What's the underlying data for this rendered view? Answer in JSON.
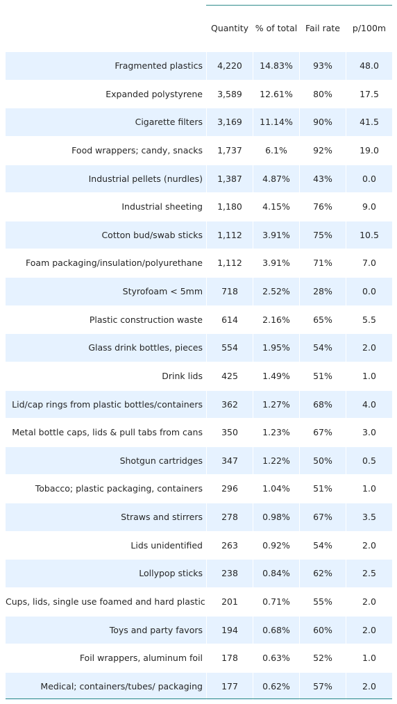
{
  "chart_data": {
    "type": "table",
    "columns": [
      "Quantity",
      "% of total",
      "Fail rate",
      "p/100m"
    ],
    "rows": [
      {
        "label": "Fragmented plastics",
        "values": [
          "4,220",
          "14.83%",
          "93%",
          "48.0"
        ]
      },
      {
        "label": "Expanded polystyrene",
        "values": [
          "3,589",
          "12.61%",
          "80%",
          "17.5"
        ]
      },
      {
        "label": "Cigarette filters",
        "values": [
          "3,169",
          "11.14%",
          "90%",
          "41.5"
        ]
      },
      {
        "label": "Food wrappers; candy, snacks",
        "values": [
          "1,737",
          "6.1%",
          "92%",
          "19.0"
        ]
      },
      {
        "label": "Industrial pellets (nurdles)",
        "values": [
          "1,387",
          "4.87%",
          "43%",
          "0.0"
        ]
      },
      {
        "label": "Industrial sheeting",
        "values": [
          "1,180",
          "4.15%",
          "76%",
          "9.0"
        ]
      },
      {
        "label": "Cotton bud/swab sticks",
        "values": [
          "1,112",
          "3.91%",
          "75%",
          "10.5"
        ]
      },
      {
        "label": "Foam packaging/insulation/polyurethane",
        "values": [
          "1,112",
          "3.91%",
          "71%",
          "7.0"
        ]
      },
      {
        "label": "Styrofoam < 5mm",
        "values": [
          "718",
          "2.52%",
          "28%",
          "0.0"
        ]
      },
      {
        "label": "Plastic construction waste",
        "values": [
          "614",
          "2.16%",
          "65%",
          "5.5"
        ]
      },
      {
        "label": "Glass drink bottles, pieces",
        "values": [
          "554",
          "1.95%",
          "54%",
          "2.0"
        ]
      },
      {
        "label": "Drink lids",
        "values": [
          "425",
          "1.49%",
          "51%",
          "1.0"
        ]
      },
      {
        "label": "Lid/cap rings from plastic bottles/containers",
        "values": [
          "362",
          "1.27%",
          "68%",
          "4.0"
        ]
      },
      {
        "label": "Metal bottle caps, lids & pull tabs from cans",
        "values": [
          "350",
          "1.23%",
          "67%",
          "3.0"
        ]
      },
      {
        "label": "Shotgun cartridges",
        "values": [
          "347",
          "1.22%",
          "50%",
          "0.5"
        ]
      },
      {
        "label": "Tobacco; plastic packaging, containers",
        "values": [
          "296",
          "1.04%",
          "51%",
          "1.0"
        ]
      },
      {
        "label": "Straws and stirrers",
        "values": [
          "278",
          "0.98%",
          "67%",
          "3.5"
        ]
      },
      {
        "label": "Lids unidentified",
        "values": [
          "263",
          "0.92%",
          "54%",
          "2.0"
        ]
      },
      {
        "label": "Lollypop sticks",
        "values": [
          "238",
          "0.84%",
          "62%",
          "2.5"
        ]
      },
      {
        "label": "Cups, lids, single use foamed and hard plastic",
        "values": [
          "201",
          "0.71%",
          "55%",
          "2.0"
        ]
      },
      {
        "label": "Toys and party favors",
        "values": [
          "194",
          "0.68%",
          "60%",
          "2.0"
        ]
      },
      {
        "label": "Foil wrappers, aluminum foil",
        "values": [
          "178",
          "0.63%",
          "52%",
          "1.0"
        ]
      },
      {
        "label": "Medical; containers/tubes/ packaging",
        "values": [
          "177",
          "0.62%",
          "57%",
          "2.0"
        ]
      }
    ],
    "colors": {
      "stripe": "#e6f2ff",
      "rule": "#2e8b8b",
      "text": "#262626"
    }
  }
}
